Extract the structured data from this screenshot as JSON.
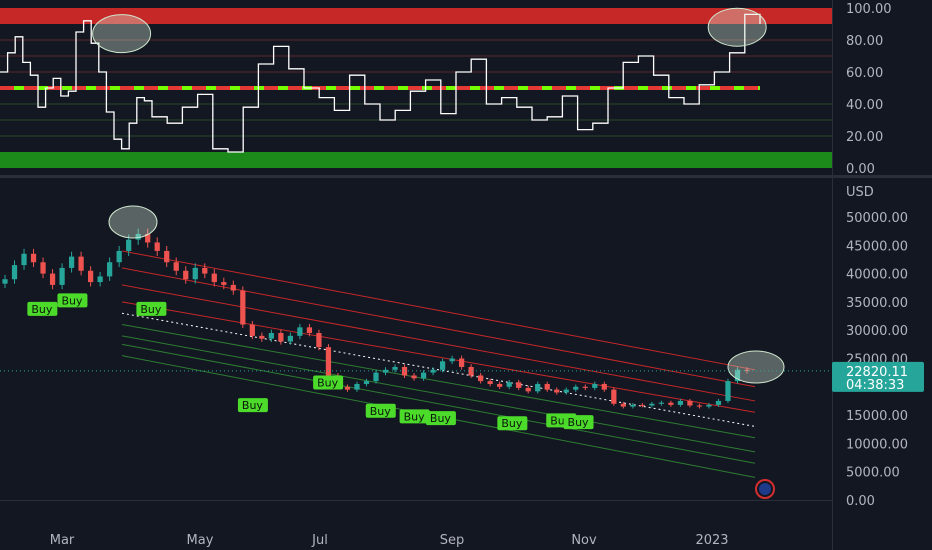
{
  "chart_data": [
    {
      "type": "line",
      "ylim": [
        0,
        100
      ],
      "yticks": [
        "100.00",
        "80.00",
        "60.00",
        "40.00",
        "20.00",
        "0.00"
      ],
      "zones": [
        {
          "from": 90,
          "to": 100,
          "color": "#c62828"
        },
        {
          "from": 0,
          "to": 10,
          "color": "#1b8a1b"
        }
      ],
      "midline": {
        "value": 50,
        "colors": [
          "#e53935",
          "#76ff03"
        ]
      },
      "series": [
        {
          "color": "#ffffff",
          "x": [
            0,
            0.01,
            0.02,
            0.03,
            0.04,
            0.05,
            0.06,
            0.07,
            0.08,
            0.09,
            0.1,
            0.11,
            0.12,
            0.13,
            0.14,
            0.15,
            0.16,
            0.17,
            0.18,
            0.19,
            0.2,
            0.22,
            0.24,
            0.26,
            0.28,
            0.3,
            0.32,
            0.34,
            0.36,
            0.38,
            0.4,
            0.42,
            0.44,
            0.46,
            0.48,
            0.5,
            0.52,
            0.54,
            0.56,
            0.58,
            0.6,
            0.62,
            0.64,
            0.66,
            0.68,
            0.7,
            0.72,
            0.74,
            0.76,
            0.78,
            0.8,
            0.82,
            0.84,
            0.86,
            0.88,
            0.9,
            0.92,
            0.94,
            0.96,
            0.98,
            1.0
          ],
          "y": [
            60,
            72,
            82,
            66,
            58,
            38,
            50,
            56,
            45,
            48,
            85,
            92,
            78,
            60,
            35,
            18,
            12,
            28,
            44,
            42,
            32,
            28,
            38,
            46,
            12,
            10,
            38,
            65,
            76,
            62,
            50,
            44,
            36,
            58,
            40,
            30,
            36,
            48,
            55,
            34,
            60,
            68,
            40,
            44,
            38,
            30,
            32,
            45,
            24,
            28,
            50,
            66,
            70,
            58,
            44,
            40,
            52,
            60,
            72,
            96,
            90
          ]
        }
      ]
    },
    {
      "type": "candlestick",
      "ylim": [
        0,
        53000
      ],
      "ylabel": "USD",
      "yticks": [
        "50000.00",
        "45000.00",
        "40000.00",
        "35000.00",
        "30000.00",
        "25000.00",
        "15000.00",
        "10000.00",
        "5000.00",
        "0.00"
      ],
      "x_labels": [
        "Mar",
        "May",
        "Jul",
        "Sep",
        "Nov",
        "2023"
      ],
      "last_price": "22820.11",
      "countdown": "04:38:33",
      "price_tag_color": "#26a69a",
      "close": [
        39000,
        41500,
        43500,
        42000,
        40000,
        38000,
        41000,
        43000,
        40500,
        38500,
        39500,
        42000,
        44000,
        46000,
        47000,
        45500,
        44000,
        42000,
        40500,
        39000,
        41000,
        40000,
        38500,
        38000,
        37000,
        31000,
        29000,
        28500,
        29500,
        28000,
        29000,
        30500,
        29500,
        27000,
        22000,
        20000,
        19500,
        20500,
        21000,
        22500,
        23000,
        23500,
        22000,
        21500,
        22500,
        23000,
        24500,
        25000,
        23500,
        22000,
        21000,
        20500,
        20000,
        20800,
        19800,
        19200,
        20500,
        19500,
        19000,
        19500,
        20000,
        19800,
        20500,
        19500,
        17000,
        16500,
        16800,
        16700,
        17000,
        17200,
        16800,
        17500,
        16700,
        16500,
        16800,
        17500,
        21000,
        23000,
        22820
      ],
      "series": [],
      "channel_lines": [
        {
          "start": 44000,
          "end": 23000,
          "color": "#c62828"
        },
        {
          "start": 41000,
          "end": 20000,
          "color": "#c62828"
        },
        {
          "start": 38000,
          "end": 17500,
          "color": "#c62828"
        },
        {
          "start": 35000,
          "end": 15500,
          "color": "#c62828"
        },
        {
          "start": 33000,
          "end": 13000,
          "color": "#ffffff",
          "dashed": true
        },
        {
          "start": 31000,
          "end": 11000,
          "color": "#2e7d32"
        },
        {
          "start": 29000,
          "end": 8500,
          "color": "#2e7d32"
        },
        {
          "start": 27500,
          "end": 6500,
          "color": "#2e7d32"
        },
        {
          "start": 25500,
          "end": 4000,
          "color": "#2e7d32"
        }
      ],
      "annotations": [
        {
          "label": "Buy",
          "x": 0.055,
          "y": 35000
        },
        {
          "label": "Buy",
          "x": 0.095,
          "y": 36500
        },
        {
          "label": "Buy",
          "x": 0.2,
          "y": 35000
        },
        {
          "label": "Buy",
          "x": 0.335,
          "y": 18000
        },
        {
          "label": "Buy",
          "x": 0.435,
          "y": 22000
        },
        {
          "label": "Buy",
          "x": 0.505,
          "y": 17000
        },
        {
          "label": "Buy",
          "x": 0.55,
          "y": 16000
        },
        {
          "label": "Buy",
          "x": 0.585,
          "y": 15700
        },
        {
          "label": "Buy",
          "x": 0.68,
          "y": 14800
        },
        {
          "label": "Buy",
          "x": 0.745,
          "y": 15300
        },
        {
          "label": "Buy",
          "x": 0.768,
          "y": 15000
        }
      ]
    }
  ]
}
